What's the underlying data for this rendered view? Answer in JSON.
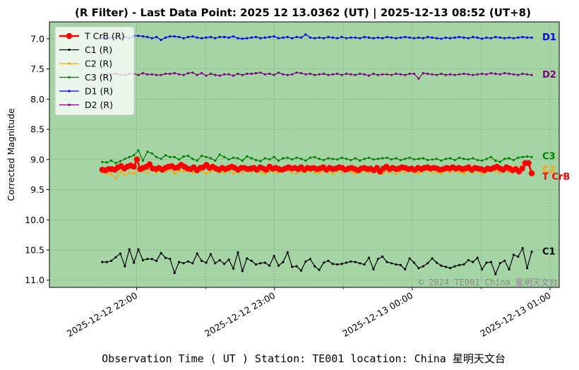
{
  "chart_data": {
    "type": "line",
    "title": "(R Filter) - Last Data Point: 2025 12 13.0362 (UT) | 2025-12-13 08:52 (UT+8)",
    "xlabel": "Observation Time ( UT )  Station: TE001 location: China 星明天文台",
    "ylabel": "Corrected Magnitude",
    "watermark": "© 2024 TE001 China 星明天文台",
    "y_inverted": true,
    "ylim": [
      11.12,
      6.72
    ],
    "yticks": [
      "7.0",
      "7.5",
      "8.0",
      "8.5",
      "9.0",
      "9.5",
      "10.0",
      "10.5",
      "11.0"
    ],
    "xlim": [
      "2025-12-12 21:22",
      "2025-12-13 01:04"
    ],
    "xticks": [
      "2025-12-12 22:00",
      "2025-12-12 23:00",
      "2025-12-13 00:00",
      "2025-12-13 01:00"
    ],
    "x_start": "2025-12-12 21:45",
    "x_end": "2025-12-13 00:52",
    "grid": true,
    "legend_position": "top-left",
    "background_color": "#a5d5a5",
    "series": [
      {
        "name": "T CrB (R)",
        "end_label": "T CrB",
        "color": "#ff0000",
        "marker_size": 4.2,
        "line_width": 2.6,
        "values": [
          9.17,
          9.18,
          9.16,
          9.16,
          9.17,
          9.13,
          9.11,
          9.15,
          9.12,
          9.1,
          9.12,
          9.0,
          9.16,
          9.14,
          9.12,
          9.08,
          9.15,
          9.16,
          9.14,
          9.17,
          9.14,
          9.12,
          9.11,
          9.14,
          9.13,
          9.09,
          9.12,
          9.15,
          9.16,
          9.13,
          9.18,
          9.14,
          9.13,
          9.09,
          9.14,
          9.12,
          9.15,
          9.17,
          9.14,
          9.16,
          9.14,
          9.12,
          9.14,
          9.17,
          9.14,
          9.14,
          9.16,
          9.15,
          9.14,
          9.17,
          9.13,
          9.15,
          9.17,
          9.12,
          9.15,
          9.14,
          9.16,
          9.17,
          9.15,
          9.13,
          9.15,
          9.14,
          9.16,
          9.13,
          9.17,
          9.14,
          9.15,
          9.14,
          9.16,
          9.15,
          9.13,
          9.17,
          9.14,
          9.16,
          9.15,
          9.13,
          9.14,
          9.17,
          9.15,
          9.14,
          9.16,
          9.18,
          9.15,
          9.14,
          9.16,
          9.15,
          9.18,
          9.14,
          9.2,
          9.15,
          9.12,
          9.16,
          9.14,
          9.16,
          9.15,
          9.13,
          9.14,
          9.16,
          9.15,
          9.17,
          9.14,
          9.16,
          9.14,
          9.13,
          9.15,
          9.14,
          9.15,
          9.17,
          9.16,
          9.14,
          9.15,
          9.13,
          9.15,
          9.14,
          9.16,
          9.15,
          9.13,
          9.17,
          9.14,
          9.15,
          9.16,
          9.18,
          9.15,
          9.16,
          9.14,
          9.12,
          9.15,
          9.17,
          9.13,
          9.15,
          9.18,
          9.16,
          9.2,
          9.15,
          9.06,
          9.06,
          9.23
        ]
      },
      {
        "name": "C1 (R)",
        "end_label": "C1",
        "color": "#000000",
        "marker_size": 1.6,
        "line_width": 1.2,
        "values": [
          10.7,
          10.7,
          10.68,
          10.62,
          10.56,
          10.77,
          10.49,
          10.71,
          10.49,
          10.67,
          10.65,
          10.65,
          10.68,
          10.55,
          10.63,
          10.65,
          10.88,
          10.7,
          10.72,
          10.69,
          10.72,
          10.56,
          10.68,
          10.71,
          10.57,
          10.72,
          10.67,
          10.73,
          10.66,
          10.81,
          10.54,
          10.85,
          10.64,
          10.68,
          10.74,
          10.72,
          10.71,
          10.76,
          10.6,
          10.76,
          10.7,
          10.54,
          10.78,
          10.77,
          10.84,
          10.69,
          10.65,
          10.77,
          10.83,
          10.71,
          10.68,
          10.73,
          10.74,
          10.73,
          10.71,
          10.69,
          10.7,
          10.72,
          10.74,
          10.63,
          10.82,
          10.65,
          10.61,
          10.7,
          10.72,
          10.74,
          10.75,
          10.82,
          10.64,
          10.71,
          10.8,
          10.77,
          10.72,
          10.64,
          10.71,
          10.76,
          10.78,
          10.8,
          10.77,
          10.75,
          10.74,
          10.67,
          10.7,
          10.63,
          10.82,
          10.71,
          10.7,
          10.9,
          10.72,
          10.68,
          10.82,
          10.58,
          10.61,
          10.47,
          10.8,
          10.53
        ]
      },
      {
        "name": "C2 (R)",
        "end_label": "C2",
        "color": "#ffa500",
        "marker_size": 1.6,
        "line_width": 1.2,
        "values": [
          9.21,
          9.24,
          9.25,
          9.32,
          9.2,
          9.26,
          9.22,
          9.23,
          9.18,
          9.2,
          9.22,
          9.1,
          9.22,
          9.18,
          9.21,
          9.17,
          9.23,
          9.19,
          9.2,
          9.18,
          9.22,
          9.21,
          9.19,
          9.23,
          9.2,
          9.18,
          9.22,
          9.21,
          9.19,
          9.23,
          9.2,
          9.22,
          9.18,
          9.21,
          9.2,
          9.22,
          9.23,
          9.19,
          9.21,
          9.22,
          9.2,
          9.18,
          9.22,
          9.24,
          9.2,
          9.21,
          9.19,
          9.22,
          9.23,
          9.2,
          9.21,
          9.24,
          9.19,
          9.22,
          9.2,
          9.21,
          9.23,
          9.21,
          9.2,
          9.22,
          9.19,
          9.21,
          9.23,
          9.2,
          9.22,
          9.24,
          9.2,
          9.21,
          9.19,
          9.22,
          9.23,
          9.2,
          9.18,
          9.22,
          9.21,
          9.24,
          9.19,
          9.22,
          9.2,
          9.21,
          9.23,
          9.19,
          9.22,
          9.2,
          9.24,
          9.21,
          9.16,
          9.2,
          9.22,
          9.18,
          9.21,
          9.12,
          9.18,
          9.06,
          9.04,
          9.22
        ]
      },
      {
        "name": "C3 (R)",
        "end_label": "C3",
        "color": "#008000",
        "marker_size": 1.6,
        "line_width": 1.2,
        "values": [
          9.04,
          9.05,
          9.02,
          9.06,
          9.03,
          8.99,
          8.96,
          8.93,
          8.85,
          9.02,
          8.87,
          8.9,
          8.96,
          8.99,
          8.93,
          8.96,
          8.96,
          9.0,
          8.95,
          8.94,
          8.99,
          9.02,
          8.94,
          8.96,
          8.98,
          9.02,
          8.92,
          8.96,
          9.0,
          8.97,
          8.98,
          9.02,
          8.95,
          8.98,
          9.01,
          9.03,
          8.98,
          9.0,
          8.96,
          9.02,
          8.98,
          8.97,
          9.0,
          8.97,
          8.99,
          9.02,
          8.97,
          8.96,
          8.99,
          9.01,
          8.98,
          8.99,
          9.0,
          8.97,
          8.99,
          9.01,
          8.98,
          9.02,
          8.99,
          8.97,
          9.0,
          8.99,
          8.98,
          8.97,
          9.0,
          8.98,
          9.01,
          8.99,
          8.97,
          9.0,
          8.99,
          8.98,
          9.01,
          9.0,
          8.99,
          9.02,
          8.99,
          8.98,
          9.01,
          8.97,
          8.99,
          9.0,
          8.98,
          9.01,
          9.02,
          8.99,
          8.96,
          9.02,
          9.04,
          8.99,
          8.98,
          9.01,
          8.97,
          8.96,
          8.95,
          8.96
        ]
      },
      {
        "name": "D1 (R)",
        "end_label": "D1",
        "color": "#0000ff",
        "marker_size": 1.6,
        "line_width": 1.2,
        "values": [
          6.98,
          6.99,
          6.98,
          6.98,
          7.0,
          6.97,
          6.99,
          6.95,
          6.95,
          6.96,
          6.97,
          6.99,
          6.97,
          7.02,
          6.98,
          6.96,
          6.96,
          6.97,
          6.99,
          6.97,
          6.96,
          6.98,
          6.99,
          6.98,
          6.97,
          6.99,
          6.97,
          6.97,
          6.98,
          6.96,
          6.99,
          7.0,
          6.99,
          6.98,
          6.97,
          6.99,
          6.98,
          6.97,
          6.96,
          6.99,
          6.98,
          6.97,
          6.99,
          6.97,
          6.98,
          6.93,
          6.98,
          6.99,
          6.98,
          6.99,
          6.97,
          6.98,
          6.99,
          6.97,
          6.99,
          6.98,
          6.98,
          6.99,
          6.97,
          6.98,
          6.99,
          6.98,
          6.99,
          6.97,
          6.98,
          6.99,
          6.98,
          6.97,
          6.98,
          6.99,
          6.98,
          6.99,
          6.97,
          6.98,
          6.99,
          7.0,
          6.98,
          6.99,
          6.98,
          6.97,
          6.98,
          6.99,
          6.97,
          6.98,
          7.0,
          6.98,
          6.99,
          6.97,
          6.98,
          6.99,
          6.98,
          6.99,
          6.98,
          6.97,
          6.98,
          6.98
        ]
      },
      {
        "name": "D2 (R)",
        "end_label": "D2",
        "color": "#800080",
        "marker_size": 1.6,
        "line_width": 1.2,
        "values": [
          7.6,
          7.6,
          7.59,
          7.58,
          7.6,
          7.6,
          7.58,
          7.58,
          7.6,
          7.57,
          7.59,
          7.59,
          7.6,
          7.6,
          7.58,
          7.58,
          7.57,
          7.59,
          7.6,
          7.57,
          7.56,
          7.6,
          7.57,
          7.61,
          7.58,
          7.6,
          7.61,
          7.59,
          7.59,
          7.61,
          7.58,
          7.6,
          7.58,
          7.58,
          7.57,
          7.56,
          7.59,
          7.58,
          7.6,
          7.56,
          7.59,
          7.6,
          7.59,
          7.56,
          7.57,
          7.59,
          7.58,
          7.6,
          7.59,
          7.58,
          7.6,
          7.59,
          7.58,
          7.6,
          7.58,
          7.59,
          7.6,
          7.58,
          7.59,
          7.61,
          7.58,
          7.6,
          7.59,
          7.59,
          7.6,
          7.58,
          7.59,
          7.6,
          7.58,
          7.58,
          7.66,
          7.57,
          7.58,
          7.59,
          7.6,
          7.58,
          7.6,
          7.59,
          7.6,
          7.59,
          7.58,
          7.59,
          7.6,
          7.59,
          7.58,
          7.59,
          7.57,
          7.58,
          7.59,
          7.57,
          7.58,
          7.59,
          7.6,
          7.58,
          7.59,
          7.6
        ]
      }
    ]
  }
}
